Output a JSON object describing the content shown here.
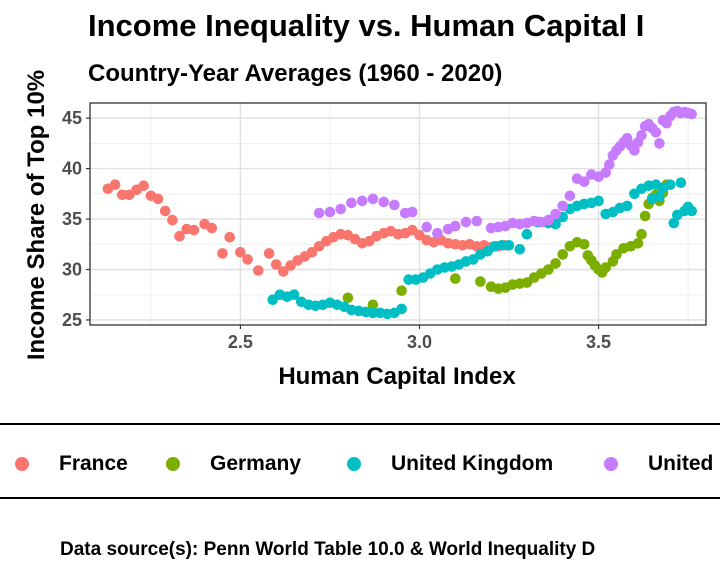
{
  "chart_data": {
    "type": "scatter",
    "title": "Income Inequality vs. Human Capital I",
    "subtitle": "Country-Year Averages (1960 - 2020)",
    "xlabel": "Human Capital Index",
    "ylabel": "Income Share of Top 10%",
    "caption": "Data source(s): Penn World Table 10.0 & World Inequality D",
    "xlim": [
      2.08,
      3.8
    ],
    "ylim": [
      24.5,
      46.5
    ],
    "x_ticks": [
      "2.5",
      "3.0",
      "3.5"
    ],
    "y_ticks": [
      "25",
      "30",
      "35",
      "40",
      "45"
    ],
    "grid": true,
    "legend_position": "bottom",
    "series": [
      {
        "name": "France",
        "color": "#F8766D",
        "points": [
          [
            2.13,
            38.0
          ],
          [
            2.15,
            38.4
          ],
          [
            2.17,
            37.4
          ],
          [
            2.19,
            37.4
          ],
          [
            2.21,
            37.9
          ],
          [
            2.23,
            38.3
          ],
          [
            2.25,
            37.3
          ],
          [
            2.27,
            37.0
          ],
          [
            2.29,
            35.8
          ],
          [
            2.31,
            34.9
          ],
          [
            2.33,
            33.3
          ],
          [
            2.35,
            34.0
          ],
          [
            2.37,
            33.9
          ],
          [
            2.4,
            34.5
          ],
          [
            2.42,
            34.1
          ],
          [
            2.45,
            31.6
          ],
          [
            2.47,
            33.2
          ],
          [
            2.5,
            31.7
          ],
          [
            2.52,
            31.0
          ],
          [
            2.55,
            29.9
          ],
          [
            2.58,
            31.6
          ],
          [
            2.6,
            30.5
          ],
          [
            2.62,
            29.8
          ],
          [
            2.64,
            30.4
          ],
          [
            2.66,
            30.9
          ],
          [
            2.68,
            31.3
          ],
          [
            2.7,
            31.7
          ],
          [
            2.72,
            32.3
          ],
          [
            2.74,
            32.8
          ],
          [
            2.76,
            33.2
          ],
          [
            2.78,
            33.5
          ],
          [
            2.8,
            33.4
          ],
          [
            2.82,
            33.0
          ],
          [
            2.84,
            32.6
          ],
          [
            2.86,
            32.8
          ],
          [
            2.88,
            33.3
          ],
          [
            2.9,
            33.6
          ],
          [
            2.92,
            33.8
          ],
          [
            2.94,
            33.5
          ],
          [
            2.96,
            33.6
          ],
          [
            2.98,
            33.9
          ],
          [
            3.0,
            33.4
          ],
          [
            3.02,
            32.9
          ],
          [
            3.04,
            32.7
          ],
          [
            3.06,
            32.9
          ],
          [
            3.08,
            32.6
          ],
          [
            3.1,
            32.5
          ],
          [
            3.12,
            32.4
          ],
          [
            3.14,
            32.5
          ],
          [
            3.16,
            32.3
          ],
          [
            3.18,
            32.4
          ],
          [
            3.2,
            32.2
          ],
          [
            3.22,
            32.3
          ],
          [
            3.24,
            32.4
          ]
        ]
      },
      {
        "name": "Germany",
        "color": "#7CAE00",
        "points": [
          [
            2.8,
            27.2
          ],
          [
            2.87,
            26.5
          ],
          [
            2.95,
            27.9
          ],
          [
            3.1,
            29.1
          ],
          [
            3.17,
            28.8
          ],
          [
            3.2,
            28.3
          ],
          [
            3.22,
            28.1
          ],
          [
            3.24,
            28.2
          ],
          [
            3.26,
            28.5
          ],
          [
            3.28,
            28.6
          ],
          [
            3.3,
            28.7
          ],
          [
            3.32,
            29.2
          ],
          [
            3.34,
            29.6
          ],
          [
            3.36,
            30.0
          ],
          [
            3.38,
            30.6
          ],
          [
            3.4,
            31.5
          ],
          [
            3.42,
            32.3
          ],
          [
            3.44,
            32.7
          ],
          [
            3.46,
            32.5
          ],
          [
            3.47,
            31.4
          ],
          [
            3.48,
            30.9
          ],
          [
            3.49,
            30.4
          ],
          [
            3.5,
            30.0
          ],
          [
            3.51,
            29.7
          ],
          [
            3.52,
            30.2
          ],
          [
            3.54,
            30.8
          ],
          [
            3.55,
            31.5
          ],
          [
            3.57,
            32.1
          ],
          [
            3.59,
            32.3
          ],
          [
            3.61,
            32.6
          ],
          [
            3.62,
            33.5
          ],
          [
            3.63,
            35.3
          ],
          [
            3.64,
            36.5
          ],
          [
            3.65,
            37.1
          ],
          [
            3.66,
            37.4
          ],
          [
            3.67,
            36.8
          ],
          [
            3.68,
            37.6
          ],
          [
            3.69,
            38.4
          ]
        ]
      },
      {
        "name": "United Kingdom",
        "color": "#00BFC4",
        "points": [
          [
            2.59,
            27.0
          ],
          [
            2.61,
            27.5
          ],
          [
            2.63,
            27.3
          ],
          [
            2.65,
            27.5
          ],
          [
            2.67,
            26.8
          ],
          [
            2.69,
            26.5
          ],
          [
            2.71,
            26.4
          ],
          [
            2.73,
            26.5
          ],
          [
            2.75,
            26.7
          ],
          [
            2.77,
            26.5
          ],
          [
            2.79,
            26.3
          ],
          [
            2.81,
            26.0
          ],
          [
            2.83,
            25.9
          ],
          [
            2.85,
            25.8
          ],
          [
            2.87,
            25.7
          ],
          [
            2.89,
            25.7
          ],
          [
            2.91,
            25.6
          ],
          [
            2.93,
            25.7
          ],
          [
            2.95,
            26.1
          ],
          [
            2.97,
            29.0
          ],
          [
            2.99,
            29.0
          ],
          [
            3.01,
            29.2
          ],
          [
            3.03,
            29.6
          ],
          [
            3.05,
            30.0
          ],
          [
            3.07,
            30.2
          ],
          [
            3.09,
            30.3
          ],
          [
            3.11,
            30.5
          ],
          [
            3.13,
            30.8
          ],
          [
            3.15,
            31.0
          ],
          [
            3.17,
            31.5
          ],
          [
            3.19,
            31.8
          ],
          [
            3.21,
            32.3
          ],
          [
            3.23,
            32.4
          ],
          [
            3.25,
            32.4
          ],
          [
            3.28,
            32.0
          ],
          [
            3.3,
            33.5
          ],
          [
            3.33,
            34.7
          ],
          [
            3.36,
            34.6
          ],
          [
            3.38,
            34.5
          ],
          [
            3.4,
            35.2
          ],
          [
            3.42,
            36.0
          ],
          [
            3.44,
            36.3
          ],
          [
            3.46,
            36.5
          ],
          [
            3.48,
            36.6
          ],
          [
            3.5,
            36.8
          ],
          [
            3.52,
            35.5
          ],
          [
            3.54,
            35.7
          ],
          [
            3.56,
            36.1
          ],
          [
            3.58,
            36.3
          ],
          [
            3.6,
            37.5
          ],
          [
            3.62,
            38.0
          ],
          [
            3.64,
            38.3
          ],
          [
            3.66,
            38.4
          ],
          [
            3.68,
            38.1
          ],
          [
            3.7,
            38.4
          ],
          [
            3.72,
            35.4
          ],
          [
            3.74,
            35.8
          ],
          [
            3.76,
            35.8
          ],
          [
            3.73,
            38.6
          ],
          [
            3.71,
            34.6
          ],
          [
            3.75,
            36.2
          ],
          [
            3.65,
            37.0
          ],
          [
            3.67,
            37.2
          ]
        ]
      },
      {
        "name": "United",
        "color": "#C77CFF",
        "points": [
          [
            2.72,
            35.6
          ],
          [
            2.75,
            35.7
          ],
          [
            2.78,
            36.0
          ],
          [
            2.81,
            36.6
          ],
          [
            2.84,
            36.8
          ],
          [
            2.87,
            37.0
          ],
          [
            2.9,
            36.7
          ],
          [
            2.93,
            36.4
          ],
          [
            2.96,
            35.6
          ],
          [
            2.98,
            35.7
          ],
          [
            3.02,
            34.2
          ],
          [
            3.05,
            33.6
          ],
          [
            3.08,
            34.0
          ],
          [
            3.1,
            34.3
          ],
          [
            3.13,
            34.7
          ],
          [
            3.16,
            34.8
          ],
          [
            3.2,
            34.1
          ],
          [
            3.22,
            34.2
          ],
          [
            3.24,
            34.3
          ],
          [
            3.26,
            34.6
          ],
          [
            3.28,
            34.5
          ],
          [
            3.3,
            34.6
          ],
          [
            3.32,
            34.8
          ],
          [
            3.34,
            34.7
          ],
          [
            3.36,
            34.9
          ],
          [
            3.38,
            35.5
          ],
          [
            3.4,
            36.3
          ],
          [
            3.42,
            37.3
          ],
          [
            3.44,
            39.0
          ],
          [
            3.46,
            38.7
          ],
          [
            3.48,
            39.4
          ],
          [
            3.5,
            39.2
          ],
          [
            3.52,
            39.6
          ],
          [
            3.53,
            40.4
          ],
          [
            3.54,
            41.3
          ],
          [
            3.55,
            41.8
          ],
          [
            3.56,
            42.2
          ],
          [
            3.57,
            42.6
          ],
          [
            3.58,
            43.0
          ],
          [
            3.59,
            42.3
          ],
          [
            3.6,
            41.8
          ],
          [
            3.61,
            42.6
          ],
          [
            3.62,
            43.3
          ],
          [
            3.63,
            44.2
          ],
          [
            3.64,
            44.4
          ],
          [
            3.65,
            44.0
          ],
          [
            3.66,
            43.6
          ],
          [
            3.67,
            42.5
          ],
          [
            3.68,
            44.8
          ],
          [
            3.69,
            44.5
          ],
          [
            3.7,
            45.2
          ],
          [
            3.71,
            45.6
          ],
          [
            3.72,
            45.7
          ],
          [
            3.73,
            45.5
          ],
          [
            3.74,
            45.6
          ],
          [
            3.75,
            45.5
          ],
          [
            3.76,
            45.4
          ]
        ]
      }
    ]
  }
}
